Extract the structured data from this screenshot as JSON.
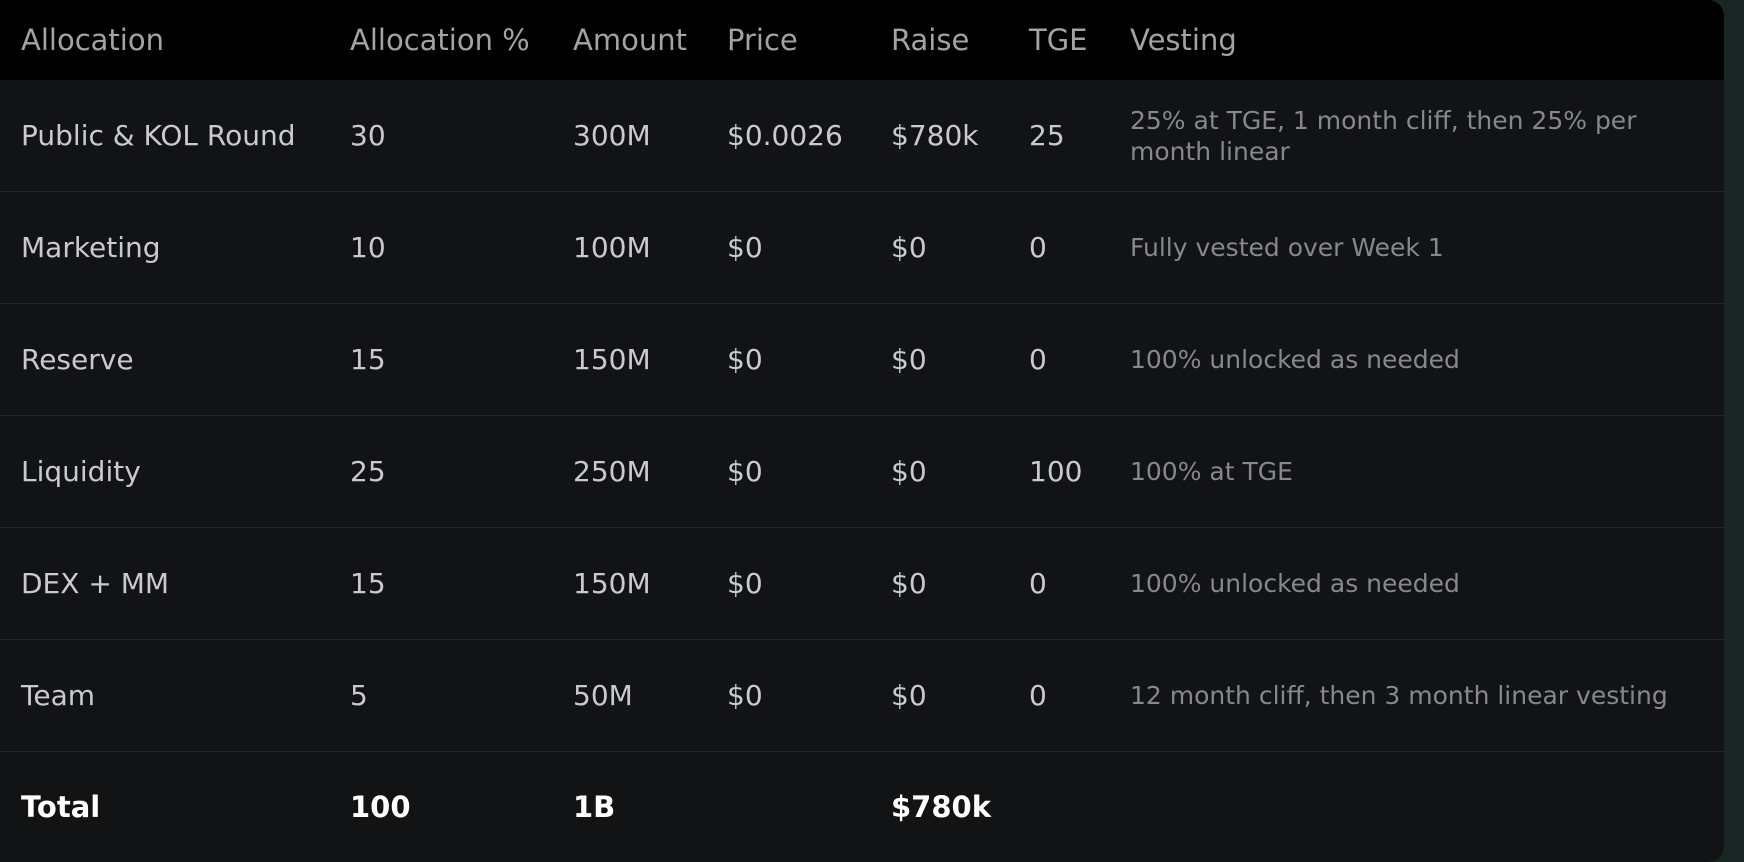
{
  "headers": {
    "allocation": "Allocation",
    "pct": "Allocation %",
    "amount": "Amount",
    "price": "Price",
    "raise": "Raise",
    "tge": "TGE",
    "vesting": "Vesting"
  },
  "rows": [
    {
      "allocation": "Public & KOL Round",
      "pct": "30",
      "amount": "300M",
      "price": "$0.0026",
      "raise": "$780k",
      "tge": "25",
      "vesting": "25% at TGE, 1 month cliff, then 25% per month linear"
    },
    {
      "allocation": "Marketing",
      "pct": "10",
      "amount": "100M",
      "price": "$0",
      "raise": "$0",
      "tge": "0",
      "vesting": "Fully vested over Week 1"
    },
    {
      "allocation": "Reserve",
      "pct": "15",
      "amount": "150M",
      "price": "$0",
      "raise": "$0",
      "tge": "0",
      "vesting": "100% unlocked as needed"
    },
    {
      "allocation": "Liquidity",
      "pct": "25",
      "amount": "250M",
      "price": "$0",
      "raise": "$0",
      "tge": "100",
      "vesting": "100% at TGE"
    },
    {
      "allocation": "DEX + MM",
      "pct": "15",
      "amount": "150M",
      "price": "$0",
      "raise": "$0",
      "tge": "0",
      "vesting": "100% unlocked as needed"
    },
    {
      "allocation": "Team",
      "pct": "5",
      "amount": "50M",
      "price": "$0",
      "raise": "$0",
      "tge": "0",
      "vesting": "12 month cliff, then 3 month linear vesting"
    }
  ],
  "total": {
    "label": "Total",
    "pct": "100",
    "amount": "1B",
    "raise": "$780k"
  }
}
